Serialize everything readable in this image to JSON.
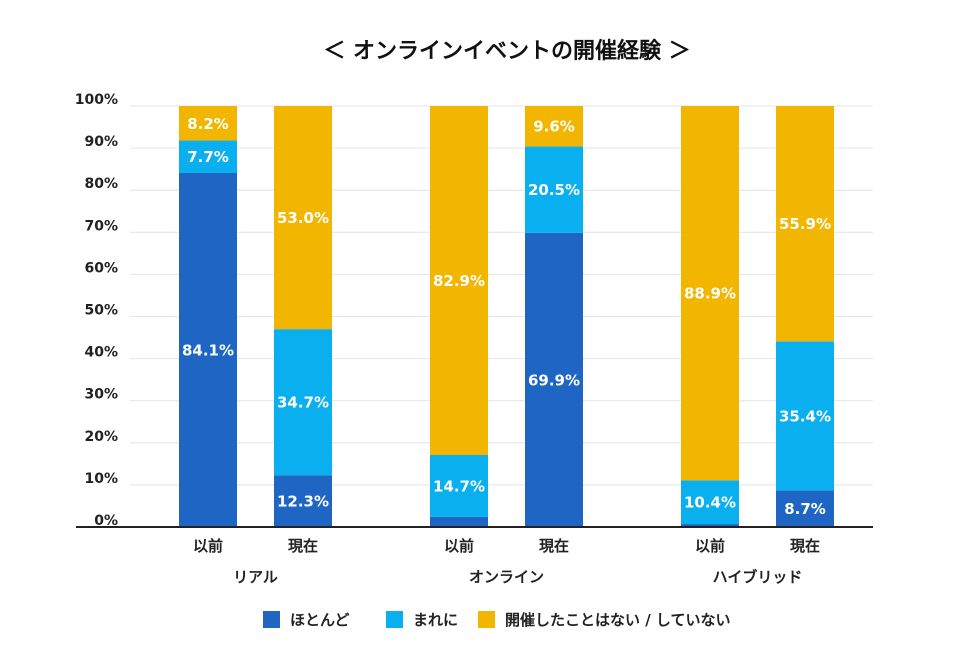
{
  "chart_data": {
    "type": "bar",
    "stacked": true,
    "title": "＜ オンラインイベントの開催経験 ＞",
    "ylim": [
      0,
      100
    ],
    "grid": true,
    "legend": "bottom",
    "yticks": [
      {
        "value": 0,
        "label": "0%"
      },
      {
        "value": 10,
        "label": "10%"
      },
      {
        "value": 20,
        "label": "20%"
      },
      {
        "value": 30,
        "label": "30%"
      },
      {
        "value": 40,
        "label": "40%"
      },
      {
        "value": 50,
        "label": "50%"
      },
      {
        "value": 60,
        "label": "60%"
      },
      {
        "value": 70,
        "label": "70%"
      },
      {
        "value": 80,
        "label": "80%"
      },
      {
        "value": 90,
        "label": "90%"
      },
      {
        "value": 100,
        "label": "100%"
      }
    ],
    "groups": [
      "リアル",
      "オンライン",
      "ハイブリッド"
    ],
    "categories": [
      "以前",
      "現在",
      "以前",
      "現在",
      "以前",
      "現在"
    ],
    "series": [
      {
        "name": "ほとんど",
        "color": "#1F66C4",
        "values": [
          84.1,
          12.3,
          2.4,
          69.9,
          0.7,
          8.7
        ],
        "labels": [
          "84.1%",
          "12.3%",
          null,
          "69.9%",
          null,
          "8.7%"
        ]
      },
      {
        "name": "まれに",
        "color": "#0AAFEF",
        "values": [
          7.7,
          34.7,
          14.7,
          20.5,
          10.4,
          35.4
        ],
        "labels": [
          "7.7%",
          "34.7%",
          "14.7%",
          "20.5%",
          "10.4%",
          "35.4%"
        ]
      },
      {
        "name": "開催したことはない / していない",
        "color": "#F2B600",
        "values": [
          8.2,
          53.0,
          82.9,
          9.6,
          88.9,
          55.9
        ],
        "labels": [
          "8.2%",
          "53.0%",
          "82.9%",
          "9.6%",
          "88.9%",
          "55.9%"
        ]
      }
    ]
  }
}
